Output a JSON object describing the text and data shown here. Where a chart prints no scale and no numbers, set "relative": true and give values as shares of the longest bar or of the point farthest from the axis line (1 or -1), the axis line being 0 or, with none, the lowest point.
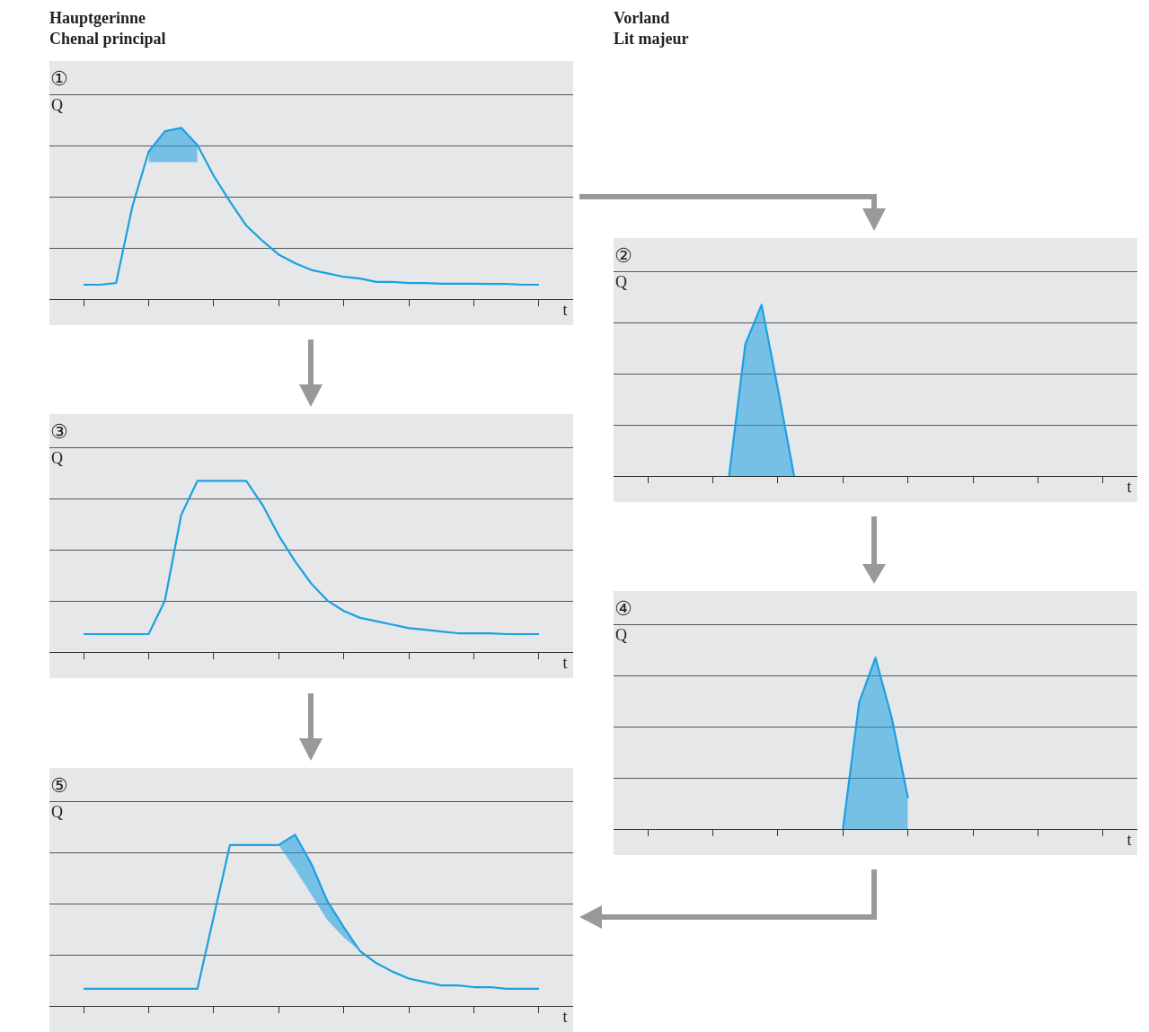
{
  "chart_data": [
    {
      "type": "line",
      "title": "①",
      "xlabel": "t",
      "ylabel": "Q",
      "annotations": [
        "Hauptgerinne",
        "Chenal principal"
      ],
      "relative": true,
      "grid": "y",
      "categories": [
        null,
        null,
        null,
        null,
        null,
        null,
        null,
        null,
        null,
        null,
        null,
        null,
        null,
        null,
        null,
        null,
        null,
        null,
        null,
        null,
        null,
        null,
        null,
        null,
        null,
        null,
        null,
        null,
        null
      ],
      "series": [
        {
          "color": "#1ba1e2",
          "values": [
            0.084,
            0.084,
            0.094,
            0.54,
            0.86,
            0.98,
            1,
            0.9,
            0.72,
            0.57,
            0.43,
            0.34,
            0.26,
            0.21,
            0.17,
            0.15,
            0.13,
            0.12,
            0.1,
            0.1,
            0.094,
            0.094,
            0.09,
            0.09,
            0.09,
            0.088,
            0.088,
            0.084,
            0.084
          ],
          "lower": [
            null,
            null,
            null,
            null,
            0.8,
            0.8,
            0.8,
            0.8,
            null,
            null,
            null,
            null,
            null,
            null,
            null,
            null,
            null,
            null,
            null,
            null,
            null,
            null,
            null,
            null,
            null,
            null,
            null,
            null,
            null
          ],
          "upper": [
            null,
            null,
            null,
            null,
            0.86,
            0.98,
            1,
            0.9,
            null,
            null,
            null,
            null,
            null,
            null,
            null,
            null,
            null,
            null,
            null,
            null,
            null,
            null,
            null,
            null,
            null,
            null,
            null,
            null,
            null
          ]
        }
      ]
    },
    {
      "type": "area",
      "title": "②",
      "xlabel": "t",
      "ylabel": "Q",
      "annotations": [
        "Vorland",
        "Lit majeur"
      ],
      "relative": true,
      "grid": "y",
      "categories": [
        null,
        null,
        null,
        null,
        null,
        null,
        null,
        null,
        null,
        null,
        null,
        null,
        null,
        null,
        null,
        null,
        null,
        null,
        null,
        null,
        null,
        null,
        null,
        null,
        null,
        null,
        null,
        null,
        null
      ],
      "series": [
        {
          "color": "#1ba1e2",
          "values": [
            null,
            null,
            null,
            null,
            null,
            0,
            0.77,
            1,
            0.51,
            0,
            null,
            null,
            null,
            null,
            null,
            null,
            null,
            null,
            null,
            null,
            null,
            null,
            null,
            null,
            null,
            null,
            null,
            null,
            null
          ]
        }
      ]
    },
    {
      "type": "line",
      "title": "③",
      "xlabel": "t",
      "ylabel": "Q",
      "relative": true,
      "grid": "y",
      "categories": [
        null,
        null,
        null,
        null,
        null,
        null,
        null,
        null,
        null,
        null,
        null,
        null,
        null,
        null,
        null,
        null,
        null,
        null,
        null,
        null,
        null,
        null,
        null,
        null,
        null,
        null,
        null,
        null,
        null
      ],
      "series": [
        {
          "color": "#1ba1e2",
          "values": [
            0.105,
            0.105,
            0.105,
            0.105,
            0.105,
            0.3,
            0.8,
            1,
            1,
            1,
            1,
            0.86,
            0.68,
            0.53,
            0.4,
            0.3,
            0.24,
            0.2,
            0.18,
            0.16,
            0.14,
            0.13,
            0.12,
            0.11,
            0.11,
            0.11,
            0.105,
            0.105,
            0.105
          ]
        }
      ]
    },
    {
      "type": "area",
      "title": "④",
      "xlabel": "t",
      "ylabel": "Q",
      "relative": true,
      "grid": "y",
      "categories": [
        null,
        null,
        null,
        null,
        null,
        null,
        null,
        null,
        null,
        null,
        null,
        null,
        null,
        null,
        null,
        null,
        null,
        null,
        null,
        null,
        null,
        null,
        null,
        null,
        null,
        null,
        null,
        null,
        null
      ],
      "series": [
        {
          "color": "#1ba1e2",
          "values": [
            null,
            null,
            null,
            null,
            null,
            null,
            null,
            null,
            null,
            null,
            null,
            null,
            0,
            0.74,
            1,
            0.65,
            0.18,
            null,
            null,
            null,
            null,
            null,
            null,
            null,
            null,
            null,
            null,
            null,
            null
          ]
        }
      ]
    },
    {
      "type": "line",
      "title": "⑤",
      "xlabel": "t",
      "ylabel": "Q",
      "relative": true,
      "grid": "y",
      "categories": [
        null,
        null,
        null,
        null,
        null,
        null,
        null,
        null,
        null,
        null,
        null,
        null,
        null,
        null,
        null,
        null,
        null,
        null,
        null,
        null,
        null,
        null,
        null,
        null,
        null,
        null,
        null,
        null,
        null
      ],
      "series": [
        {
          "color": "#1ba1e2",
          "values": [
            0.1,
            0.1,
            0.1,
            0.1,
            0.1,
            0.1,
            0.1,
            0.1,
            0.52,
            0.94,
            0.94,
            0.94,
            0.94,
            1,
            0.83,
            0.61,
            0.46,
            0.32,
            0.25,
            0.2,
            0.16,
            0.14,
            0.12,
            0.12,
            0.11,
            0.11,
            0.1,
            0.1,
            0.1
          ],
          "lower": [
            null,
            null,
            null,
            null,
            null,
            null,
            null,
            null,
            null,
            null,
            null,
            null,
            0.94,
            0.8,
            0.65,
            0.5,
            0.4,
            0.32,
            null,
            null,
            null,
            null,
            null,
            null,
            null,
            null,
            null,
            null,
            null
          ],
          "upper": [
            null,
            null,
            null,
            null,
            null,
            null,
            null,
            null,
            null,
            null,
            null,
            null,
            0.94,
            1,
            0.83,
            0.61,
            0.46,
            0.32,
            null,
            null,
            null,
            null,
            null,
            null,
            null,
            null,
            null,
            null,
            null
          ]
        }
      ]
    }
  ]
}
